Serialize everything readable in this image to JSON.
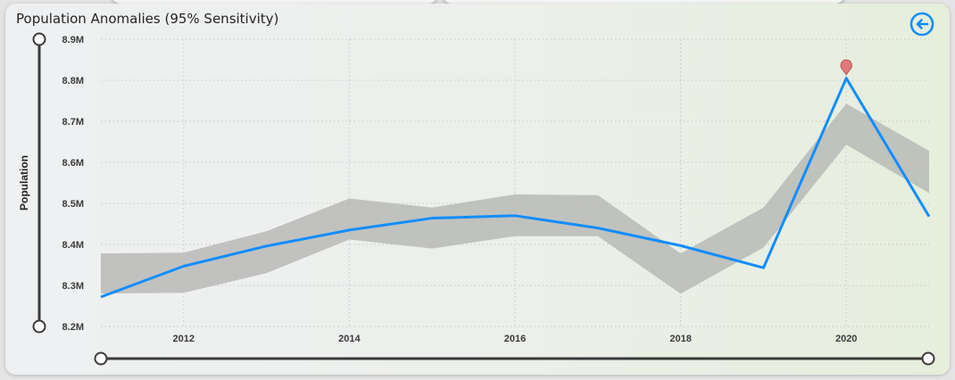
{
  "title": "Population Anomalies (95% Sensitivity)",
  "colors": {
    "line": "#118dff",
    "band": "#b9bab6",
    "anomaly": "#e07a7a",
    "slider": "#3a3a3a",
    "tick": "#3b3b3b"
  },
  "icons": {
    "back": "back-arrow-icon"
  },
  "chart_data": {
    "type": "line",
    "title": "Population Anomalies (95% Sensitivity)",
    "xlabel": "",
    "ylabel": "Population",
    "xlim": [
      2011,
      2021
    ],
    "ylim": [
      8200000,
      8900000
    ],
    "x_ticks": [
      2012,
      2014,
      2016,
      2018,
      2020
    ],
    "x_tick_labels": [
      "2012",
      "2014",
      "2016",
      "2018",
      "2020"
    ],
    "y_ticks": [
      8200000,
      8300000,
      8400000,
      8500000,
      8600000,
      8700000,
      8800000,
      8900000
    ],
    "y_tick_labels": [
      "8.2M",
      "8.3M",
      "8.4M",
      "8.5M",
      "8.6M",
      "8.7M",
      "8.8M",
      "8.9M"
    ],
    "grid": true,
    "series": [
      {
        "x": [
          2011,
          2012,
          2013,
          2014,
          2015,
          2016,
          2017,
          2018,
          2019,
          2020,
          2021
        ],
        "values": [
          8272000,
          8347000,
          8396000,
          8435000,
          8464000,
          8470000,
          8440000,
          8397000,
          8343000,
          8805000,
          8468000
        ]
      }
    ],
    "expected_range": {
      "x": [
        2011,
        2012,
        2013,
        2014,
        2015,
        2016,
        2017,
        2018,
        2019,
        2020,
        2021
      ],
      "upper": [
        8378000,
        8380000,
        8432000,
        8512000,
        8490000,
        8522000,
        8520000,
        8378000,
        8490000,
        8743000,
        8628000
      ],
      "lower": [
        8280000,
        8282000,
        8330000,
        8412000,
        8390000,
        8420000,
        8420000,
        8280000,
        8392000,
        8643000,
        8525000
      ]
    },
    "anomalies": [
      {
        "x": 2020,
        "y": 8805000
      }
    ],
    "x_range_slider": [
      2011,
      2021
    ],
    "y_range_slider": [
      8200000,
      8900000
    ]
  }
}
